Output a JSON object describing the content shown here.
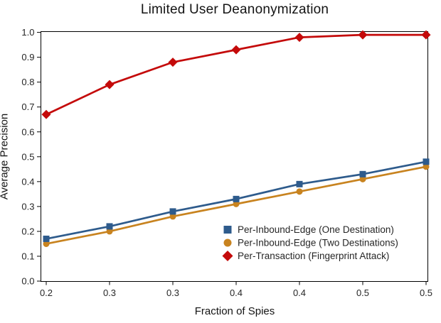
{
  "chart_data": {
    "type": "line",
    "title": "Limited User Deanonymization",
    "xlabel": "Fraction of Spies",
    "ylabel": "Average Precision",
    "xlim": [
      0.2,
      0.5
    ],
    "ylim": [
      0.0,
      1.0
    ],
    "grid": false,
    "legend_position": "inside lower-right, no frame",
    "x": [
      0.2,
      0.25,
      0.3,
      0.35,
      0.4,
      0.45,
      0.5
    ],
    "x_tick_labels": [
      "0.2",
      "0.3",
      "0.3",
      "0.4",
      "0.4",
      "0.5",
      "0.5"
    ],
    "y_ticks": [
      0.0,
      0.1,
      0.2,
      0.3,
      0.4,
      0.5,
      0.6,
      0.7,
      0.8,
      0.9,
      1.0
    ],
    "y_tick_labels": [
      "0.0",
      "0.1",
      "0.2",
      "0.3",
      "0.4",
      "0.5",
      "0.6",
      "0.7",
      "0.8",
      "0.9",
      "1.0"
    ],
    "series": [
      {
        "name": "Per-Inbound-Edge (One Destination)",
        "marker": "square",
        "color": "#2E5B8C",
        "values": [
          0.17,
          0.22,
          0.28,
          0.33,
          0.39,
          0.43,
          0.48
        ]
      },
      {
        "name": "Per-Inbound-Edge (Two Destinations)",
        "marker": "circle",
        "color": "#C8831F",
        "values": [
          0.15,
          0.2,
          0.26,
          0.31,
          0.36,
          0.41,
          0.46
        ]
      },
      {
        "name": "Per-Transaction (Fingerprint Attack)",
        "marker": "diamond",
        "color": "#C40A0A",
        "values": [
          0.67,
          0.79,
          0.88,
          0.93,
          0.98,
          0.99,
          0.99
        ]
      }
    ],
    "text_color": "#262626",
    "axis_color": "#000000"
  }
}
